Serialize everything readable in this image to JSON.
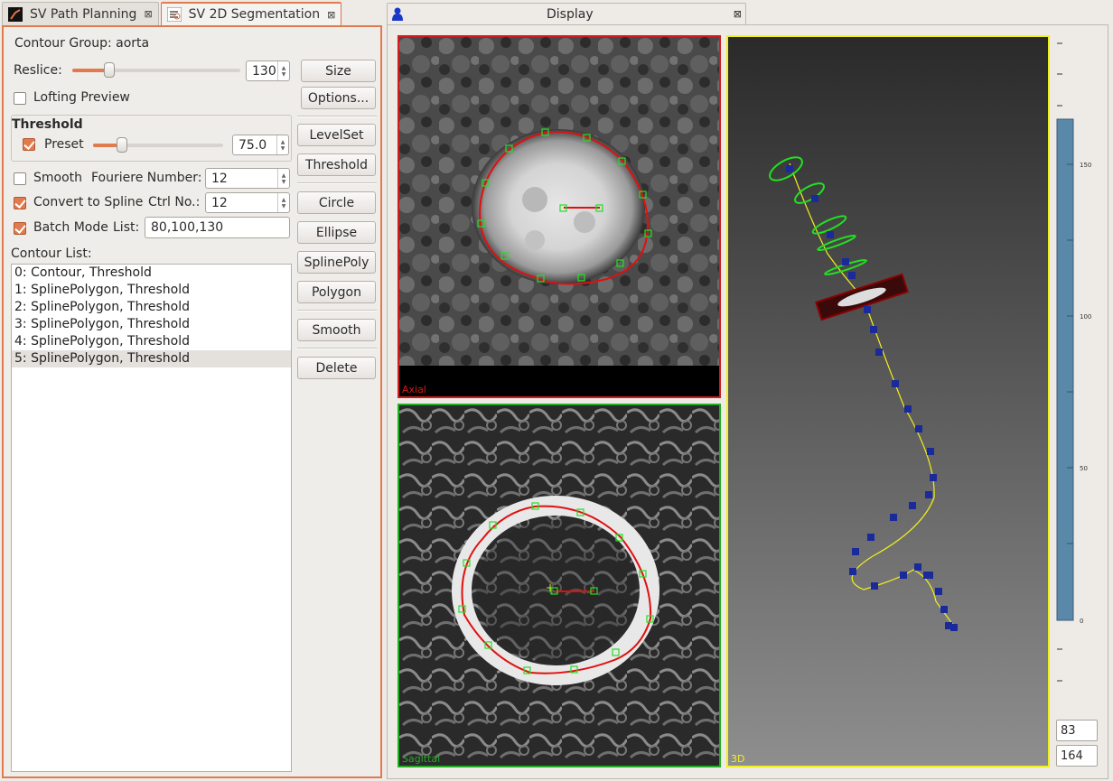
{
  "left_tabs": [
    {
      "label": "SV Path Planning",
      "icon": "path-planning-icon"
    },
    {
      "label": "SV 2D Segmentation",
      "icon": "segmentation-icon"
    }
  ],
  "segmentation": {
    "contour_group_label": "Contour Group: aorta",
    "reslice_label": "Reslice:",
    "reslice_value": "130",
    "reslice_fraction": 0.22,
    "size_button": "Size",
    "lofting_preview_label": "Lofting Preview",
    "lofting_preview_checked": false,
    "options_button": "Options...",
    "threshold_group_title": "Threshold",
    "preset_label": "Preset",
    "preset_checked": true,
    "preset_value": "75.0",
    "preset_fraction": 0.22,
    "levelset_button": "LevelSet",
    "threshold_button": "Threshold",
    "smooth_label": "Smooth",
    "smooth_checked": false,
    "fourier_label": "Fouriere Number:",
    "fourier_value": "12",
    "spline_label": "Convert to Spline",
    "spline_checked": true,
    "ctrl_label": "Ctrl No.:",
    "ctrl_value": "12",
    "batch_label": "Batch Mode",
    "batch_checked": true,
    "list_label": "List:",
    "list_value": "80,100,130",
    "contour_list_label": "Contour List:",
    "contours": [
      "0: Contour, Threshold",
      "1: SplinePolygon, Threshold",
      "2: SplinePolygon, Threshold",
      "3: SplinePolygon, Threshold",
      "4: SplinePolygon, Threshold",
      "5: SplinePolygon, Threshold"
    ],
    "selected_contour_index": 5,
    "circle_button": "Circle",
    "ellipse_button": "Ellipse",
    "splinepoly_button": "SplinePoly",
    "polygon_button": "Polygon",
    "smooth_button": "Smooth",
    "delete_button": "Delete"
  },
  "display": {
    "tab_title": "Display",
    "axial_label": "Axial",
    "sagittal_label": "Sagittal",
    "view3d_label": "3D",
    "scale_ticks": [
      "150",
      "100",
      "50",
      "0"
    ],
    "coord_x": "83",
    "coord_y": "164",
    "colors": {
      "axial_border": "#d01c1c",
      "sagittal_border": "#1fae1f",
      "view3d_border": "#f0f01e",
      "contour": "#e01010",
      "control_point": "#22e022",
      "path_point": "#1a2a9a",
      "accent": "#e07a4f"
    }
  }
}
